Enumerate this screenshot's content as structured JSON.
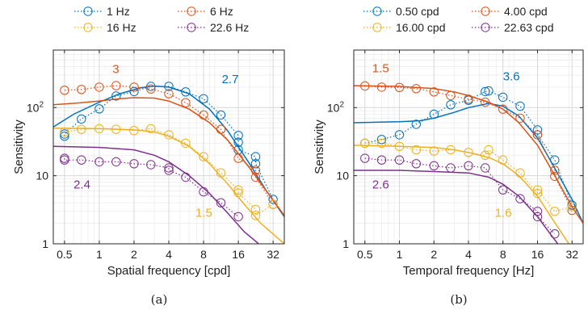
{
  "chart_data": [
    {
      "type": "scatter",
      "panel_label": "(a)",
      "title": "",
      "xlabel": "Spatial frequency [cpd]",
      "ylabel": "Sensitivity",
      "xscale": "log",
      "yscale": "log",
      "xlim": [
        0.4,
        40
      ],
      "ylim": [
        1,
        700
      ],
      "xticks": [
        0.5,
        1,
        2,
        4,
        8,
        16,
        32
      ],
      "xticklabels": [
        "0.5",
        "1",
        "2",
        "4",
        "8",
        "16",
        "32"
      ],
      "yticks": [
        1,
        10,
        100
      ],
      "yticklabels": [
        "1",
        "10",
        "10²"
      ],
      "grid": true,
      "legend_position": "top",
      "series": [
        {
          "name": "1 Hz",
          "color": "#0072BD",
          "marker": "circle",
          "points": [
            [
              0.5,
              38
            ],
            [
              0.5,
              41
            ],
            [
              0.7,
              68
            ],
            [
              1.0,
              96
            ],
            [
              1.4,
              148
            ],
            [
              2.0,
              172
            ],
            [
              2.8,
              205
            ],
            [
              4.0,
              205
            ],
            [
              5.6,
              170
            ],
            [
              8.0,
              135
            ],
            [
              11.3,
              78
            ],
            [
              16.0,
              39
            ],
            [
              16.0,
              31
            ],
            [
              16.0,
              24
            ],
            [
              22.6,
              19
            ],
            [
              22.6,
              15
            ],
            [
              32.0,
              4.5
            ]
          ],
          "fit": [
            [
              0.4,
              52
            ],
            [
              0.6,
              80
            ],
            [
              1.0,
              120
            ],
            [
              1.5,
              160
            ],
            [
              2.3,
              196
            ],
            [
              3.0,
              207
            ],
            [
              4.0,
              200
            ],
            [
              6.0,
              160
            ],
            [
              9.0,
              95
            ],
            [
              13.0,
              45
            ],
            [
              20.0,
              15
            ],
            [
              28.0,
              6
            ],
            [
              40.0,
              2.5
            ]
          ]
        },
        {
          "name": "6 Hz",
          "color": "#D95319",
          "marker": "circle",
          "points": [
            [
              0.5,
              180
            ],
            [
              0.7,
              185
            ],
            [
              1.0,
              200
            ],
            [
              1.4,
              210
            ],
            [
              2.0,
              200
            ],
            [
              2.8,
              188
            ],
            [
              4.0,
              160
            ],
            [
              5.6,
              118
            ],
            [
              8.0,
              78
            ],
            [
              11.3,
              48
            ],
            [
              16.0,
              18
            ],
            [
              22.6,
              12
            ],
            [
              22.6,
              9.5
            ],
            [
              32.0,
              3.8
            ]
          ],
          "fit": [
            [
              0.4,
              110
            ],
            [
              0.7,
              118
            ],
            [
              1.0,
              125
            ],
            [
              1.5,
              135
            ],
            [
              2.0,
              140
            ],
            [
              3.0,
              138
            ],
            [
              4.0,
              125
            ],
            [
              6.0,
              95
            ],
            [
              9.0,
              60
            ],
            [
              13.0,
              33
            ],
            [
              20.0,
              13
            ],
            [
              28.0,
              6
            ],
            [
              40.0,
              2.6
            ]
          ]
        },
        {
          "name": "16 Hz",
          "color": "#EDB120",
          "marker": "circle",
          "points": [
            [
              0.5,
              44
            ],
            [
              0.7,
              48
            ],
            [
              1.0,
              49
            ],
            [
              1.4,
              48
            ],
            [
              2.0,
              46
            ],
            [
              2.8,
              49
            ],
            [
              4.0,
              40
            ],
            [
              5.6,
              30
            ],
            [
              8.0,
              19
            ],
            [
              11.3,
              11
            ],
            [
              16.0,
              6.2
            ],
            [
              16.0,
              5.6
            ],
            [
              22.6,
              3.2
            ],
            [
              22.6,
              2.6
            ],
            [
              32.0,
              3.8
            ]
          ],
          "fit": [
            [
              0.4,
              50
            ],
            [
              1.0,
              49
            ],
            [
              2.0,
              47
            ],
            [
              3.0,
              44
            ],
            [
              4.0,
              38
            ],
            [
              6.0,
              27
            ],
            [
              9.0,
              15
            ],
            [
              13.0,
              7.5
            ],
            [
              18.0,
              3.8
            ],
            [
              25.0,
              2.0
            ],
            [
              40.0,
              1.0
            ]
          ]
        },
        {
          "name": "22.6 Hz",
          "color": "#7E2F8E",
          "marker": "circle",
          "points": [
            [
              0.5,
              18
            ],
            [
              0.5,
              17
            ],
            [
              0.7,
              17
            ],
            [
              1.0,
              16
            ],
            [
              1.4,
              16
            ],
            [
              2.0,
              15
            ],
            [
              2.8,
              14.5
            ],
            [
              4.0,
              13
            ],
            [
              4.0,
              12
            ],
            [
              5.6,
              9.5
            ],
            [
              8.0,
              5.8
            ],
            [
              11.3,
              4.0
            ],
            [
              16.0,
              2.5
            ]
          ],
          "fit": [
            [
              0.4,
              27
            ],
            [
              1.0,
              26
            ],
            [
              2.0,
              24
            ],
            [
              3.0,
              20
            ],
            [
              4.0,
              16
            ],
            [
              6.0,
              10
            ],
            [
              9.0,
              5.5
            ],
            [
              13.0,
              2.8
            ],
            [
              18.0,
              1.5
            ],
            [
              24.0,
              1.0
            ]
          ]
        }
      ],
      "annotations": [
        {
          "text": "3",
          "color": "#D95319",
          "x": 1.3,
          "y": 320
        },
        {
          "text": "2.7",
          "color": "#0072BD",
          "x": 11.5,
          "y": 228
        },
        {
          "text": "2.4",
          "color": "#7E2F8E",
          "x": 0.6,
          "y": 6.5
        },
        {
          "text": "1.5",
          "color": "#EDB120",
          "x": 6.8,
          "y": 2.5
        }
      ]
    },
    {
      "type": "scatter",
      "panel_label": "(b)",
      "title": "",
      "xlabel": "Temporal frequency [Hz]",
      "ylabel": "Sensitivity",
      "xscale": "log",
      "yscale": "log",
      "xlim": [
        0.4,
        40
      ],
      "ylim": [
        1,
        700
      ],
      "xticks": [
        0.5,
        1,
        2,
        4,
        8,
        16,
        32
      ],
      "xticklabels": [
        "0.5",
        "1",
        "2",
        "4",
        "8",
        "16",
        "32"
      ],
      "yticks": [
        1,
        10,
        100
      ],
      "yticklabels": [
        "1",
        "10",
        "10²"
      ],
      "grid": true,
      "legend_position": "top",
      "series": [
        {
          "name": "0.50 cpd",
          "color": "#0072BD",
          "marker": "circle",
          "points": [
            [
              0.5,
              30
            ],
            [
              0.7,
              34
            ],
            [
              1.0,
              40
            ],
            [
              1.4,
              57
            ],
            [
              2.0,
              80
            ],
            [
              2.8,
              110
            ],
            [
              4.0,
              128
            ],
            [
              5.6,
              172
            ],
            [
              6.0,
              176
            ],
            [
              8.0,
              142
            ],
            [
              11.3,
              105
            ],
            [
              16.0,
              47
            ],
            [
              16.0,
              40
            ],
            [
              22.6,
              17
            ],
            [
              32.0,
              3.7
            ]
          ],
          "fit": [
            [
              0.4,
              60
            ],
            [
              1.0,
              62
            ],
            [
              1.5,
              64
            ],
            [
              2.0,
              70
            ],
            [
              3.0,
              85
            ],
            [
              4.0,
              100
            ],
            [
              6.0,
              115
            ],
            [
              8.0,
              105
            ],
            [
              11.0,
              75
            ],
            [
              16.0,
              36
            ],
            [
              22.0,
              14
            ],
            [
              32.0,
              4.5
            ],
            [
              40.0,
              2.0
            ]
          ]
        },
        {
          "name": "4.00 cpd",
          "color": "#D95319",
          "marker": "circle",
          "points": [
            [
              0.5,
              208
            ],
            [
              0.7,
              200
            ],
            [
              1.0,
              198
            ],
            [
              1.4,
              190
            ],
            [
              2.0,
              170
            ],
            [
              2.8,
              150
            ],
            [
              4.0,
              133
            ],
            [
              5.6,
              120
            ],
            [
              8.0,
              95
            ],
            [
              11.3,
              70
            ],
            [
              16.0,
              40
            ],
            [
              22.6,
              12
            ],
            [
              22.6,
              9.8
            ],
            [
              32.0,
              3.1
            ]
          ],
          "fit": [
            [
              0.4,
              210
            ],
            [
              1.0,
              205
            ],
            [
              2.0,
              190
            ],
            [
              3.0,
              170
            ],
            [
              4.0,
              150
            ],
            [
              6.0,
              120
            ],
            [
              8.0,
              95
            ],
            [
              11.0,
              60
            ],
            [
              16.0,
              28
            ],
            [
              22.0,
              11
            ],
            [
              32.0,
              3.5
            ],
            [
              40.0,
              2.0
            ]
          ]
        },
        {
          "name": "16.00 cpd",
          "color": "#EDB120",
          "marker": "circle",
          "points": [
            [
              0.5,
              30
            ],
            [
              0.7,
              30
            ],
            [
              1.0,
              27
            ],
            [
              1.4,
              24
            ],
            [
              2.0,
              23
            ],
            [
              2.8,
              24
            ],
            [
              4.0,
              22
            ],
            [
              5.6,
              20
            ],
            [
              6.0,
              24
            ],
            [
              8.0,
              17
            ],
            [
              11.3,
              11
            ],
            [
              16.0,
              5.5
            ],
            [
              16.0,
              6.2
            ],
            [
              22.6,
              3.0
            ],
            [
              32.0,
              3.5
            ]
          ],
          "fit": [
            [
              0.4,
              28
            ],
            [
              1.0,
              27
            ],
            [
              2.0,
              26
            ],
            [
              3.0,
              24
            ],
            [
              4.0,
              22
            ],
            [
              6.0,
              18.5
            ],
            [
              8.0,
              15
            ],
            [
              11.0,
              10
            ],
            [
              16.0,
              5.0
            ],
            [
              22.0,
              2.2
            ],
            [
              30.0,
              1.0
            ]
          ]
        },
        {
          "name": "22.63 cpd",
          "color": "#7E2F8E",
          "marker": "circle",
          "points": [
            [
              0.5,
              18
            ],
            [
              0.7,
              17
            ],
            [
              1.0,
              17
            ],
            [
              1.4,
              15
            ],
            [
              2.0,
              14
            ],
            [
              2.8,
              13
            ],
            [
              4.0,
              14
            ],
            [
              5.6,
              13
            ],
            [
              8.0,
              6.2
            ],
            [
              11.3,
              4.6
            ],
            [
              16.0,
              3.0
            ],
            [
              16.0,
              2.5
            ],
            [
              22.6,
              1.4
            ]
          ],
          "fit": [
            [
              0.4,
              12
            ],
            [
              1.0,
              12
            ],
            [
              2.0,
              11.5
            ],
            [
              3.0,
              11.2
            ],
            [
              4.0,
              11
            ],
            [
              6.0,
              9.5
            ],
            [
              8.0,
              7.5
            ],
            [
              11.0,
              5.0
            ],
            [
              16.0,
              2.5
            ],
            [
              20.0,
              1.5
            ],
            [
              24.0,
              1.0
            ]
          ]
        }
      ],
      "annotations": [
        {
          "text": "1.5",
          "color": "#D95319",
          "x": 0.58,
          "y": 330
        },
        {
          "text": "3.6",
          "color": "#0072BD",
          "x": 8.0,
          "y": 250
        },
        {
          "text": "2.6",
          "color": "#7E2F8E",
          "x": 0.58,
          "y": 6.5
        },
        {
          "text": "1.6",
          "color": "#EDB120",
          "x": 6.8,
          "y": 2.5
        }
      ]
    }
  ]
}
